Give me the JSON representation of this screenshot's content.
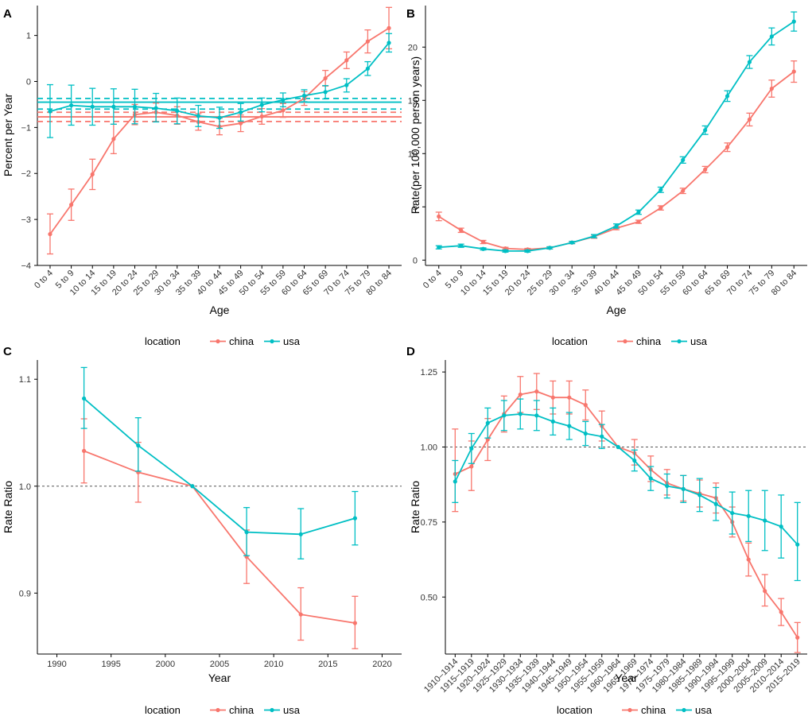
{
  "colors": {
    "china": "#F8766D",
    "usa": "#00BFC4"
  },
  "chart_data": [
    {
      "panel": "A",
      "type": "line",
      "xlabel": "Age",
      "ylabel": "Percent per Year",
      "categories": [
        "0 to 4",
        "5 to 9",
        "10 to 14",
        "15 to 19",
        "20 to 24",
        "25 to 29",
        "30 to 34",
        "35 to 39",
        "40 to 44",
        "45 to 49",
        "50 to 54",
        "55 to 59",
        "60 to 64",
        "65 to 69",
        "70 to 74",
        "75 to 79",
        "80 to 84"
      ],
      "ylim": [
        -4,
        1.65
      ],
      "yticks": [
        -4,
        -3,
        -2,
        -1,
        0,
        1
      ],
      "ytick_labels": [
        "−4",
        "−3",
        "−2",
        "−1",
        "0",
        "1"
      ],
      "series": [
        {
          "name": "china",
          "values": [
            -3.32,
            -2.68,
            -2.02,
            -1.25,
            -0.72,
            -0.67,
            -0.74,
            -0.88,
            -0.98,
            -0.91,
            -0.76,
            -0.63,
            -0.37,
            0.07,
            0.46,
            0.87,
            1.16
          ],
          "lower": [
            -3.75,
            -3.02,
            -2.35,
            -1.57,
            -0.94,
            -0.87,
            -0.93,
            -1.06,
            -1.16,
            -1.09,
            -0.93,
            -0.78,
            -0.52,
            -0.1,
            0.28,
            0.62,
            0.71
          ],
          "upper": [
            -2.88,
            -2.34,
            -1.69,
            -0.93,
            -0.5,
            -0.47,
            -0.55,
            -0.7,
            -0.8,
            -0.73,
            -0.59,
            -0.48,
            -0.22,
            0.24,
            0.64,
            1.12,
            1.61
          ]
        },
        {
          "name": "usa",
          "values": [
            -0.65,
            -0.52,
            -0.55,
            -0.55,
            -0.55,
            -0.58,
            -0.64,
            -0.75,
            -0.79,
            -0.67,
            -0.51,
            -0.4,
            -0.31,
            -0.23,
            -0.08,
            0.28,
            0.84
          ],
          "lower": [
            -1.22,
            -0.95,
            -0.95,
            -0.93,
            -0.92,
            -0.88,
            -0.92,
            -0.98,
            -1.02,
            -0.86,
            -0.66,
            -0.55,
            -0.44,
            -0.38,
            -0.23,
            0.13,
            0.64
          ],
          "upper": [
            -0.07,
            -0.08,
            -0.15,
            -0.16,
            -0.17,
            -0.26,
            -0.36,
            -0.52,
            -0.56,
            -0.48,
            -0.36,
            -0.25,
            -0.18,
            -0.09,
            0.06,
            0.43,
            1.04
          ]
        }
      ],
      "hlines": [
        {
          "series": "china",
          "y": -0.77,
          "style": "solid"
        },
        {
          "series": "china",
          "y": -0.67,
          "style": "dashed"
        },
        {
          "series": "china",
          "y": -0.87,
          "style": "dashed"
        },
        {
          "series": "usa",
          "y": -0.45,
          "style": "solid"
        },
        {
          "series": "usa",
          "y": -0.37,
          "style": "dashed"
        },
        {
          "series": "usa",
          "y": -0.6,
          "style": "dashed"
        }
      ]
    },
    {
      "panel": "B",
      "type": "line",
      "xlabel": "Age",
      "ylabel": "Rate(per 100,000 person years)",
      "categories": [
        "0 to 4",
        "5 to 9",
        "10 to 14",
        "15 to 19",
        "20 to 24",
        "25 to 29",
        "30 to 34",
        "35 to 39",
        "40 to 44",
        "45 to 49",
        "50 to 54",
        "55 to 59",
        "60 to 64",
        "65 to 69",
        "70 to 74",
        "75 to 79",
        "80 to 84"
      ],
      "ylim": [
        -0.5,
        23.9
      ],
      "yticks": [
        0,
        5,
        10,
        15,
        20
      ],
      "ytick_labels": [
        "0",
        "5",
        "10",
        "15",
        "20"
      ],
      "series": [
        {
          "name": "china",
          "values": [
            4.1,
            2.8,
            1.7,
            1.1,
            1.0,
            1.15,
            1.65,
            2.2,
            3.0,
            3.6,
            4.9,
            6.5,
            8.5,
            10.6,
            13.2,
            16.1,
            17.7
          ],
          "lower": [
            3.7,
            2.6,
            1.55,
            1.0,
            0.9,
            1.05,
            1.55,
            2.05,
            2.85,
            3.45,
            4.7,
            6.25,
            8.2,
            10.2,
            12.6,
            15.3,
            16.7
          ],
          "upper": [
            4.5,
            3.0,
            1.85,
            1.2,
            1.1,
            1.25,
            1.75,
            2.35,
            3.15,
            3.75,
            5.1,
            6.75,
            8.8,
            11.0,
            13.8,
            16.9,
            18.7
          ]
        },
        {
          "name": "usa",
          "values": [
            1.2,
            1.35,
            1.05,
            0.85,
            0.85,
            1.15,
            1.65,
            2.25,
            3.2,
            4.5,
            6.6,
            9.4,
            12.2,
            15.4,
            18.6,
            21.0,
            22.4
          ],
          "lower": [
            1.05,
            1.2,
            0.95,
            0.75,
            0.75,
            1.05,
            1.55,
            2.1,
            3.0,
            4.3,
            6.35,
            9.1,
            11.8,
            14.9,
            18.0,
            20.2,
            21.5
          ],
          "upper": [
            1.35,
            1.5,
            1.15,
            0.95,
            0.95,
            1.25,
            1.75,
            2.4,
            3.4,
            4.7,
            6.85,
            9.7,
            12.6,
            15.9,
            19.2,
            21.8,
            23.3
          ]
        }
      ]
    },
    {
      "panel": "C",
      "type": "line",
      "xlabel": "Year",
      "ylabel": "Rate Ratio",
      "x": [
        1992.5,
        1997.5,
        2002.5,
        2007.5,
        2012.5,
        2017.5
      ],
      "xlim": [
        1988.2,
        2021.8
      ],
      "xticks": [
        1990,
        1995,
        2000,
        2005,
        2010,
        2015,
        2020
      ],
      "xtick_labels": [
        "1990",
        "1995",
        "2000",
        "2005",
        "2010",
        "2015",
        "2020"
      ],
      "ylim": [
        0.843,
        1.118
      ],
      "yticks": [
        0.9,
        1.0,
        1.1
      ],
      "ytick_labels": [
        "0.9",
        "1.0",
        "1.1"
      ],
      "reference_line": 1.0,
      "series": [
        {
          "name": "china",
          "values": [
            1.033,
            1.013,
            1.0,
            0.934,
            0.88,
            0.872
          ],
          "lower": [
            1.003,
            0.985,
            1.0,
            0.909,
            0.856,
            0.848
          ],
          "upper": [
            1.063,
            1.041,
            1.0,
            0.959,
            0.905,
            0.897
          ]
        },
        {
          "name": "usa",
          "values": [
            1.082,
            1.038,
            1.0,
            0.957,
            0.955,
            0.97
          ],
          "lower": [
            1.054,
            1.014,
            1.0,
            0.935,
            0.932,
            0.945
          ],
          "upper": [
            1.111,
            1.064,
            1.0,
            0.98,
            0.979,
            0.995
          ]
        }
      ]
    },
    {
      "panel": "D",
      "type": "line",
      "xlabel": "Year",
      "ylabel": "Rate Ratio",
      "categories": [
        "1910–1914",
        "1915–1919",
        "1920–1924",
        "1925–1929",
        "1930–1934",
        "1935–1939",
        "1940–1944",
        "1945–1949",
        "1950–1954",
        "1955–1959",
        "1960–1964",
        "1965–1969",
        "1970–1974",
        "1975–1979",
        "1980–1984",
        "1985–1989",
        "1990–1994",
        "1995–1999",
        "2000–2004",
        "2005–2009",
        "2010–2014",
        "2015–2019"
      ],
      "ylim": [
        0.31,
        1.29
      ],
      "yticks": [
        0.5,
        0.75,
        1.0,
        1.25
      ],
      "ytick_labels": [
        "0.50",
        "0.75",
        "1.00",
        "1.25"
      ],
      "reference_line": 1.0,
      "series": [
        {
          "name": "china",
          "values": [
            0.91,
            0.935,
            1.025,
            1.11,
            1.175,
            1.185,
            1.165,
            1.165,
            1.14,
            1.07,
            1.0,
            0.98,
            0.925,
            0.88,
            0.86,
            0.845,
            0.83,
            0.75,
            0.625,
            0.52,
            0.45,
            0.365
          ],
          "lower": [
            0.785,
            0.855,
            0.955,
            1.05,
            1.115,
            1.125,
            1.11,
            1.11,
            1.09,
            1.02,
            1.0,
            0.94,
            0.885,
            0.84,
            0.82,
            0.8,
            0.78,
            0.7,
            0.57,
            0.47,
            0.405,
            0.315
          ],
          "upper": [
            1.06,
            1.02,
            1.095,
            1.17,
            1.235,
            1.245,
            1.22,
            1.22,
            1.19,
            1.12,
            1.0,
            1.025,
            0.97,
            0.925,
            0.905,
            0.89,
            0.88,
            0.8,
            0.68,
            0.575,
            0.495,
            0.415
          ]
        },
        {
          "name": "usa",
          "values": [
            0.885,
            0.995,
            1.08,
            1.105,
            1.11,
            1.105,
            1.085,
            1.07,
            1.045,
            1.035,
            1.0,
            0.955,
            0.895,
            0.87,
            0.86,
            0.84,
            0.81,
            0.78,
            0.77,
            0.755,
            0.735,
            0.675
          ],
          "lower": [
            0.815,
            0.945,
            1.03,
            1.055,
            1.06,
            1.055,
            1.04,
            1.025,
            1.005,
            0.995,
            1.0,
            0.92,
            0.855,
            0.83,
            0.815,
            0.785,
            0.755,
            0.71,
            0.685,
            0.655,
            0.63,
            0.555
          ],
          "upper": [
            0.955,
            1.045,
            1.13,
            1.155,
            1.16,
            1.155,
            1.13,
            1.115,
            1.085,
            1.075,
            1.0,
            0.99,
            0.935,
            0.91,
            0.905,
            0.895,
            0.865,
            0.85,
            0.855,
            0.855,
            0.84,
            0.815
          ]
        }
      ]
    }
  ],
  "legend": {
    "title": "location",
    "items": [
      "china",
      "usa"
    ]
  }
}
